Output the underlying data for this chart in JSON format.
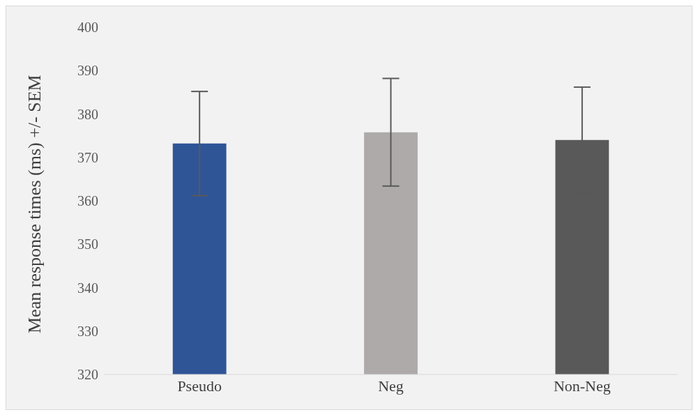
{
  "chart_data": {
    "type": "bar",
    "ylabel": "Mean response times (ms) +/- SEM",
    "categories": [
      "Pseudo",
      "Neg",
      "Non-Neg"
    ],
    "values": [
      373.2,
      375.8,
      374.0
    ],
    "colors": [
      "#2f5597",
      "#aeaaaa",
      "#595959"
    ],
    "errors": [
      12.0,
      12.4,
      12.2
    ],
    "ylim": [
      320,
      400
    ],
    "yticks": [
      320,
      330,
      340,
      350,
      360,
      370,
      380,
      390,
      400
    ],
    "grid": false,
    "legend": false
  }
}
